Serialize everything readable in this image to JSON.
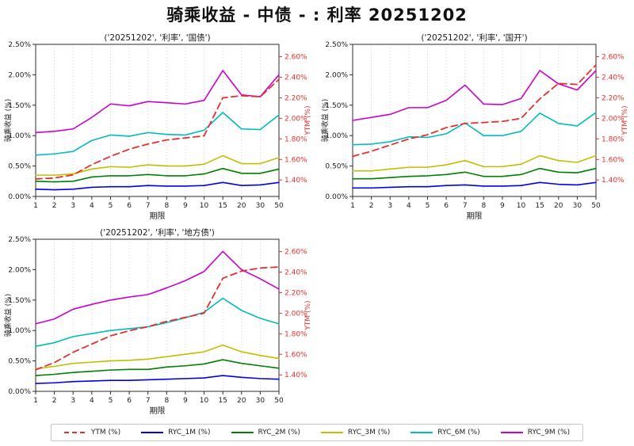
{
  "title": "骑乘收益 - 中债 - : 利率 20251202",
  "colors": {
    "ytm_red": "#e53030",
    "ryc_1m_blue": "#0000ee",
    "ryc_2m_green": "#007f00",
    "ryc_3m_yellow": "#bfbf00",
    "ryc_6m_cyan": "#00bcbc",
    "ryc_9m_magenta": "#cc00cc",
    "axis_spine": "#2b2b2b",
    "tick_text": "#1a1a1a",
    "grid": "#c8c8c8"
  },
  "legend": {
    "items": [
      {
        "label": "YTM (%)",
        "color": "#e53030",
        "style": "dashed"
      },
      {
        "label": "RYC_1M (%)",
        "color": "#0000ee",
        "style": "solid"
      },
      {
        "label": "RYC_2M (%)",
        "color": "#007f00",
        "style": "solid"
      },
      {
        "label": "RYC_3M (%)",
        "color": "#bfbf00",
        "style": "solid"
      },
      {
        "label": "RYC_6M (%)",
        "color": "#00bcbc",
        "style": "solid"
      },
      {
        "label": "RYC_9M (%)",
        "color": "#cc00cc",
        "style": "solid"
      }
    ]
  },
  "chart_data": [
    {
      "type": "line",
      "title": "('20251202', '利率', '国债')",
      "xlabel": "期限",
      "ylabel_left": "骑乘收益 (%)",
      "ylabel_right": "YTM (%)",
      "x_categories": [
        "1",
        "2",
        "3",
        "4",
        "5",
        "6",
        "7",
        "8",
        "9",
        "10",
        "15",
        "20",
        "30",
        "50"
      ],
      "ylim_left": [
        0,
        2.5
      ],
      "ylim_right": [
        1.24,
        2.72
      ],
      "yticks_left": {
        "values": [
          0,
          0.5,
          1.0,
          1.5,
          2.0,
          2.5
        ],
        "labels": [
          "0.00%",
          "0.50%",
          "1.00%",
          "1.50%",
          "2.00%",
          "2.50%"
        ]
      },
      "yticks_right": {
        "values": [
          1.4,
          1.6,
          1.8,
          2.0,
          2.2,
          2.4,
          2.6
        ],
        "labels": [
          "1.40%",
          "1.60%",
          "1.80%",
          "2.00%",
          "2.20%",
          "2.40%",
          "2.60%"
        ]
      },
      "grid": "vertical-dotted",
      "series": [
        {
          "name": "YTM (%)",
          "axis": "right",
          "style": "dashed",
          "color": "#e53030",
          "values": [
            1.41,
            1.42,
            1.45,
            1.55,
            1.63,
            1.7,
            1.75,
            1.79,
            1.81,
            1.83,
            2.2,
            2.22,
            2.21,
            2.38
          ]
        },
        {
          "name": "RYC_1M (%)",
          "axis": "left",
          "style": "solid",
          "color": "#0000ee",
          "values": [
            0.12,
            0.11,
            0.12,
            0.15,
            0.16,
            0.16,
            0.18,
            0.17,
            0.17,
            0.18,
            0.23,
            0.18,
            0.19,
            0.23
          ]
        },
        {
          "name": "RYC_2M (%)",
          "axis": "left",
          "style": "solid",
          "color": "#007f00",
          "values": [
            0.25,
            0.24,
            0.25,
            0.32,
            0.34,
            0.34,
            0.36,
            0.34,
            0.34,
            0.37,
            0.46,
            0.38,
            0.38,
            0.45
          ]
        },
        {
          "name": "RYC_3M (%)",
          "axis": "left",
          "style": "solid",
          "color": "#bfbf00",
          "values": [
            0.35,
            0.35,
            0.37,
            0.45,
            0.49,
            0.48,
            0.52,
            0.5,
            0.5,
            0.53,
            0.67,
            0.54,
            0.54,
            0.64
          ]
        },
        {
          "name": "RYC_6M (%)",
          "axis": "left",
          "style": "solid",
          "color": "#00bcbc",
          "values": [
            0.68,
            0.7,
            0.74,
            0.92,
            1.01,
            0.99,
            1.05,
            1.02,
            1.01,
            1.09,
            1.38,
            1.11,
            1.1,
            1.34
          ]
        },
        {
          "name": "RYC_9M (%)",
          "axis": "left",
          "style": "solid",
          "color": "#cc00cc",
          "values": [
            1.05,
            1.07,
            1.11,
            1.3,
            1.52,
            1.49,
            1.56,
            1.54,
            1.52,
            1.58,
            2.07,
            1.67,
            1.64,
            2.0
          ]
        }
      ]
    },
    {
      "type": "line",
      "title": "('20251202', '利率', '国开')",
      "xlabel": "期限",
      "ylabel_left": "骑乘收益 (%)",
      "ylabel_right": "YTM (%)",
      "x_categories": [
        "1",
        "2",
        "3",
        "4",
        "5",
        "6",
        "7",
        "8",
        "9",
        "10",
        "15",
        "20",
        "30",
        "50"
      ],
      "ylim_left": [
        0,
        2.5
      ],
      "ylim_right": [
        1.24,
        2.72
      ],
      "yticks_left": {
        "values": [
          0,
          0.5,
          1.0,
          1.5,
          2.0,
          2.5
        ],
        "labels": [
          "0.00%",
          "0.50%",
          "1.00%",
          "1.50%",
          "2.00%",
          "2.50%"
        ]
      },
      "yticks_right": {
        "values": [
          1.4,
          1.6,
          1.8,
          2.0,
          2.2,
          2.4,
          2.6
        ],
        "labels": [
          "1.40%",
          "1.60%",
          "1.80%",
          "2.00%",
          "2.20%",
          "2.40%",
          "2.60%"
        ]
      },
      "grid": "vertical-dotted",
      "series": [
        {
          "name": "YTM (%)",
          "axis": "right",
          "style": "dashed",
          "color": "#e53030",
          "values": [
            1.63,
            1.68,
            1.74,
            1.8,
            1.84,
            1.91,
            1.95,
            1.96,
            1.97,
            2.0,
            2.19,
            2.34,
            2.33,
            2.52
          ]
        },
        {
          "name": "RYC_1M (%)",
          "axis": "left",
          "style": "solid",
          "color": "#0000ee",
          "values": [
            0.14,
            0.14,
            0.15,
            0.16,
            0.16,
            0.18,
            0.19,
            0.17,
            0.17,
            0.18,
            0.23,
            0.2,
            0.19,
            0.23
          ]
        },
        {
          "name": "RYC_2M (%)",
          "axis": "left",
          "style": "solid",
          "color": "#007f00",
          "values": [
            0.29,
            0.29,
            0.31,
            0.33,
            0.34,
            0.36,
            0.4,
            0.33,
            0.33,
            0.36,
            0.46,
            0.4,
            0.39,
            0.46
          ]
        },
        {
          "name": "RYC_3M (%)",
          "axis": "left",
          "style": "solid",
          "color": "#bfbf00",
          "values": [
            0.42,
            0.42,
            0.45,
            0.48,
            0.48,
            0.52,
            0.59,
            0.49,
            0.49,
            0.53,
            0.67,
            0.59,
            0.56,
            0.67
          ]
        },
        {
          "name": "RYC_6M (%)",
          "axis": "left",
          "style": "solid",
          "color": "#00bcbc",
          "values": [
            0.85,
            0.86,
            0.9,
            0.98,
            0.97,
            1.03,
            1.21,
            1.0,
            1.0,
            1.07,
            1.37,
            1.2,
            1.16,
            1.38
          ]
        },
        {
          "name": "RYC_9M (%)",
          "axis": "left",
          "style": "solid",
          "color": "#cc00cc",
          "values": [
            1.25,
            1.3,
            1.35,
            1.46,
            1.46,
            1.58,
            1.83,
            1.52,
            1.51,
            1.61,
            2.07,
            1.85,
            1.75,
            2.07
          ]
        }
      ]
    },
    {
      "type": "line",
      "title": "('20251202', '利率', '地方债')",
      "xlabel": "期限",
      "ylabel_left": "骑乘收益 (%)",
      "ylabel_right": "YTM (%)",
      "x_categories": [
        "1",
        "2",
        "3",
        "4",
        "5",
        "6",
        "7",
        "8",
        "9",
        "10",
        "15",
        "20",
        "30",
        "50"
      ],
      "ylim_left": [
        0,
        2.5
      ],
      "ylim_right": [
        1.24,
        2.72
      ],
      "yticks_left": {
        "values": [
          0,
          0.5,
          1.0,
          1.5,
          2.0,
          2.5
        ],
        "labels": [
          "0.00%",
          "0.50%",
          "1.00%",
          "1.50%",
          "2.00%",
          "2.50%"
        ]
      },
      "yticks_right": {
        "values": [
          1.4,
          1.6,
          1.8,
          2.0,
          2.2,
          2.4,
          2.6
        ],
        "labels": [
          "1.40%",
          "1.60%",
          "1.80%",
          "2.00%",
          "2.20%",
          "2.40%",
          "2.60%"
        ]
      },
      "grid": "vertical-dotted",
      "series": [
        {
          "name": "YTM (%)",
          "axis": "right",
          "style": "dashed",
          "color": "#e53030",
          "values": [
            1.45,
            1.52,
            1.62,
            1.7,
            1.78,
            1.83,
            1.87,
            1.92,
            1.96,
            2.0,
            2.34,
            2.41,
            2.44,
            2.45
          ]
        },
        {
          "name": "RYC_1M (%)",
          "axis": "left",
          "style": "solid",
          "color": "#0000ee",
          "values": [
            0.13,
            0.14,
            0.16,
            0.17,
            0.18,
            0.18,
            0.19,
            0.2,
            0.21,
            0.22,
            0.26,
            0.23,
            0.21,
            0.2
          ]
        },
        {
          "name": "RYC_2M (%)",
          "axis": "left",
          "style": "solid",
          "color": "#007f00",
          "values": [
            0.26,
            0.28,
            0.31,
            0.33,
            0.35,
            0.36,
            0.36,
            0.4,
            0.42,
            0.45,
            0.52,
            0.46,
            0.42,
            0.38
          ]
        },
        {
          "name": "RYC_3M (%)",
          "axis": "left",
          "style": "solid",
          "color": "#bfbf00",
          "values": [
            0.37,
            0.41,
            0.46,
            0.48,
            0.5,
            0.51,
            0.53,
            0.57,
            0.61,
            0.65,
            0.76,
            0.65,
            0.59,
            0.54
          ]
        },
        {
          "name": "RYC_6M (%)",
          "axis": "left",
          "style": "solid",
          "color": "#00bcbc",
          "values": [
            0.74,
            0.8,
            0.9,
            0.95,
            1.0,
            1.03,
            1.06,
            1.13,
            1.21,
            1.3,
            1.53,
            1.33,
            1.2,
            1.11
          ]
        },
        {
          "name": "RYC_9M (%)",
          "axis": "left",
          "style": "solid",
          "color": "#cc00cc",
          "values": [
            1.11,
            1.19,
            1.35,
            1.43,
            1.5,
            1.55,
            1.59,
            1.7,
            1.82,
            1.97,
            2.3,
            2.0,
            1.85,
            1.68
          ]
        }
      ]
    }
  ]
}
